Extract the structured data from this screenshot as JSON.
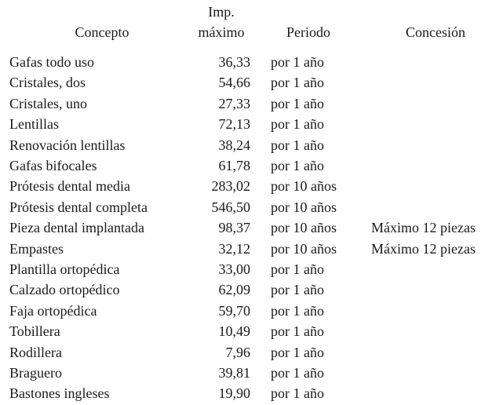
{
  "table": {
    "header": [
      "Concepto",
      "Imp.\nmáximo",
      "Periodo",
      "Concesión"
    ],
    "rows": [
      [
        "Gafas todo uso",
        "36,33",
        "por 1 año"
      ],
      [
        "Cristales, dos",
        "54,66",
        "por 1 año"
      ],
      [
        "Cristales, uno",
        "27,33",
        "por 1 año"
      ],
      [
        "Lentillas",
        "72,13",
        "por 1 año"
      ],
      [
        "Renovación lentillas",
        "38,24",
        "por 1 año"
      ],
      [
        "Gafas bifocales",
        "61,78",
        "por 1 año"
      ],
      [
        "Prótesis dental media",
        "283,02",
        "por 10 años"
      ],
      [
        "Prótesis dental completa",
        "546,50",
        "por 10 años"
      ],
      [
        "Pieza dental implantada",
        "98,37",
        "por 10 años",
        "Máximo 12 piezas"
      ],
      [
        "Empastes",
        "32,12",
        "por 10 años",
        "Máximo 12 piezas"
      ],
      [
        "Plantilla ortopédica",
        "33,00",
        "por 1 año"
      ],
      [
        "Calzado ortopédico",
        "62,09",
        "por 1 año"
      ],
      [
        "Faja ortopédica",
        "59,70",
        "por 1 año"
      ],
      [
        "Tobillera",
        "10,49",
        "por 1 año"
      ],
      [
        "Rodillera",
        "7,96",
        "por 1 año"
      ],
      [
        "Braguero",
        "39,81",
        "por 1 año"
      ],
      [
        "Bastones ingleses",
        "19,90",
        "por 1 año"
      ]
    ]
  }
}
